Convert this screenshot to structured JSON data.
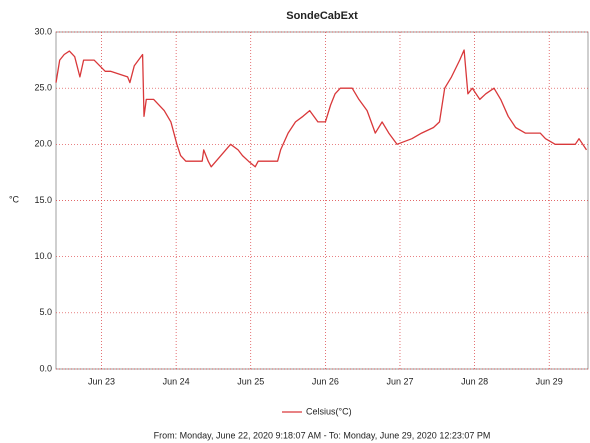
{
  "chart_data": {
    "type": "line",
    "title": "SondeCabExt",
    "y_label": "°C",
    "footer": "From: Monday, June 22, 2020 9:18:07 AM  -  To: Monday, June 29, 2020 12:23:07 PM",
    "xlim": [
      22.39,
      29.52
    ],
    "xticks": [
      {
        "value": 23,
        "label": "Jun 23"
      },
      {
        "value": 24,
        "label": "Jun 24"
      },
      {
        "value": 25,
        "label": "Jun 25"
      },
      {
        "value": 26,
        "label": "Jun 26"
      },
      {
        "value": 27,
        "label": "Jun 27"
      },
      {
        "value": 28,
        "label": "Jun 28"
      },
      {
        "value": 29,
        "label": "Jun 29"
      }
    ],
    "ylim": [
      0,
      30
    ],
    "yticks": [
      {
        "value": 0,
        "label": "0.0"
      },
      {
        "value": 5,
        "label": "5.0"
      },
      {
        "value": 10,
        "label": "10.0"
      },
      {
        "value": 15,
        "label": "15.0"
      },
      {
        "value": 20,
        "label": "20.0"
      },
      {
        "value": 25,
        "label": "25.0"
      },
      {
        "value": 30,
        "label": "30.0"
      }
    ],
    "grid": true,
    "legend": "bottom",
    "series": [
      {
        "name": "Celsius(°C)",
        "color": "#d9383a",
        "x": [
          22.39,
          22.44,
          22.5,
          22.57,
          22.64,
          22.71,
          22.76,
          22.9,
          23.05,
          23.12,
          23.35,
          23.38,
          23.44,
          23.55,
          23.57,
          23.6,
          23.7,
          23.84,
          23.93,
          24.01,
          24.06,
          24.13,
          24.35,
          24.37,
          24.43,
          24.47,
          24.6,
          24.73,
          24.83,
          24.89,
          24.97,
          25.06,
          25.1,
          25.36,
          25.4,
          25.5,
          25.6,
          25.7,
          25.79,
          25.9,
          26.0,
          26.07,
          26.13,
          26.2,
          26.36,
          26.45,
          26.56,
          26.67,
          26.76,
          26.85,
          26.96,
          27.16,
          27.29,
          27.45,
          27.53,
          27.6,
          27.69,
          27.8,
          27.86,
          27.91,
          27.97,
          28.07,
          28.15,
          28.26,
          28.35,
          28.45,
          28.55,
          28.68,
          28.88,
          28.95,
          29.08,
          29.35,
          29.4,
          29.5
        ],
        "values": [
          25.5,
          27.5,
          28.0,
          28.3,
          27.8,
          26.0,
          27.5,
          27.5,
          26.5,
          26.5,
          26.0,
          25.5,
          27.0,
          28.0,
          22.5,
          24.0,
          24.0,
          23.0,
          22.0,
          20.0,
          19.0,
          18.5,
          18.5,
          19.5,
          18.5,
          18.0,
          19.0,
          20.0,
          19.5,
          19.0,
          18.5,
          18.0,
          18.5,
          18.5,
          19.5,
          21.0,
          22.0,
          22.5,
          23.0,
          22.0,
          22.0,
          23.5,
          24.5,
          25.0,
          25.0,
          24.0,
          23.0,
          21.0,
          22.0,
          21.0,
          20.0,
          20.5,
          21.0,
          21.5,
          22.0,
          25.0,
          26.0,
          27.5,
          28.4,
          24.5,
          25.0,
          24.0,
          24.5,
          25.0,
          24.0,
          22.5,
          21.5,
          21.0,
          21.0,
          20.5,
          20.0,
          20.0,
          20.5,
          19.5
        ]
      }
    ]
  }
}
